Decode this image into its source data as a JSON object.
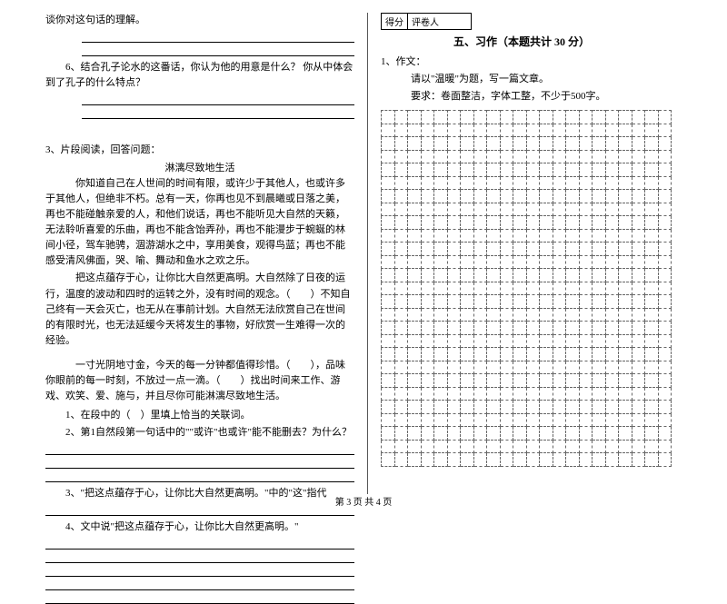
{
  "left": {
    "line1": "谈你对这句话的理解。",
    "q6": "6、结合孔子论水的这番话，你认为他的用意是什么？ 你从中体会到了孔子的什么特点？",
    "q3num": "3、片段阅读，回答问题：",
    "passageTitle": "淋漓尽致地生活",
    "p1": "你知道自己在人世间的时间有限，或许少于其他人，也或许多于其他人，但绝非不朽。总有一天，你再也见不到晨曦或日落之美，再也不能碰触亲爱的人，和他们说话，再也不能听见大自然的天籁，无法聆听喜爱的乐曲，再也不能含饴弄孙，再也不能漫步于蜿蜒的林间小径，驾车驰骋，涸游湖水之中，享用美食，观得鸟蓝；再也不能感受清风佛面，哭、喻、舞动和鱼水之欢之乐。",
    "p2": "把这点蕴存于心，让你比大自然更高明。大自然除了日夜的运行，温度的波动和四时的运转之外，没有时间的观念。（　　）不知自己终有一天会灭亡，也无从在事前计划。大自然无法欣赏自己在世间的有限时光，也无法延缓今天将发生的事物，好欣赏一生难得一次的经验。",
    "p3": "一寸光阴地寸金，今天的每一分钟都值得珍惜。（　　），品味你眼前的每一时刻，不放过一点一滴。（　　）找出时间来工作、游戏、欢笑、爱、施与，并且尽你可能淋漓尽致地生活。",
    "sub1": "1、在段中的（　）里填上恰当的关联词。",
    "sub2": "2、第1自然段第一句话中的\"\"或许\"也或许\"能不能删去？为什么？",
    "sub3": "3、\"把这点蕴存于心，让你比大自然更高明。\"中的\"这\"指代",
    "sub4": "4、文中说\"把这点蕴存于心，让你比大自然更高明。\""
  },
  "right": {
    "scoreLabels": [
      "得分",
      "评卷人"
    ],
    "sectionTitle": "五、习作（本题共计 30 分）",
    "q1": "1、作文：",
    "q1a": "请以\"温暖\"为题，写一篇文章。",
    "q1b": "要求：卷面整洁，字体工整，不少于500字。"
  },
  "footer": "第 3 页 共 4 页",
  "grid": {
    "rows": 27,
    "cols": 22
  }
}
